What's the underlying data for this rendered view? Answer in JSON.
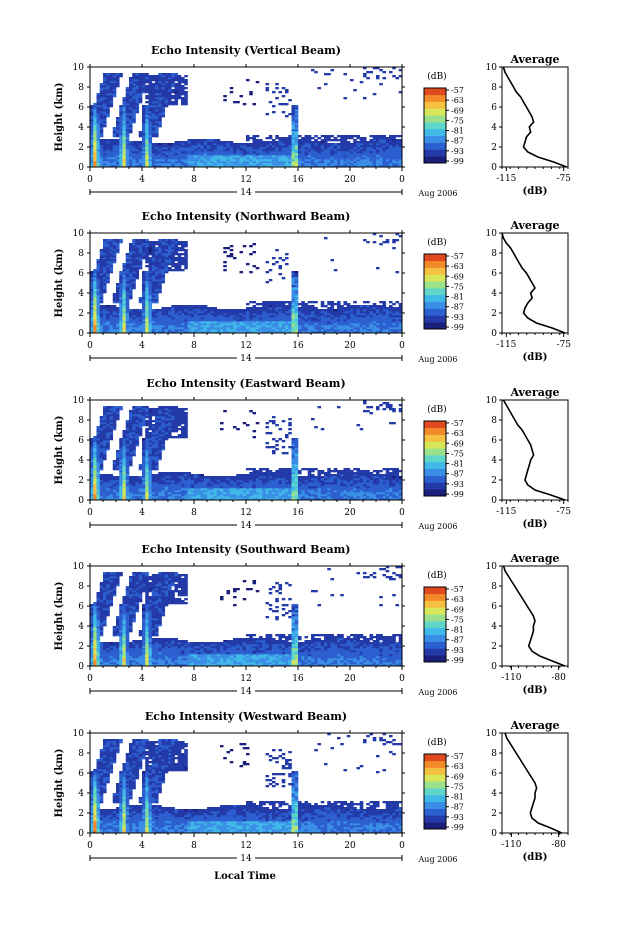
{
  "figure": {
    "xlabel": "Local Time",
    "date_label": "14",
    "month_label": "Aug 2006",
    "avg_title": "Average",
    "avg_xlabel": "(dB)",
    "cbar_label": "(dB)"
  },
  "colorscale": [
    "#1b1f7c",
    "#233aa8",
    "#2c5fd0",
    "#3a8ee6",
    "#40b8e8",
    "#5fd6c8",
    "#9be08a",
    "#d8e65a",
    "#f6c040",
    "#f38a2a",
    "#e04a1e"
  ],
  "chart_data": [
    {
      "type": "heatmap",
      "title": "Echo Intensity (Vertical Beam)",
      "xlabel": "Local Time",
      "ylabel": "Height (km)",
      "xlim": [
        0,
        24
      ],
      "xticks": [
        "0",
        "4",
        "8",
        "12",
        "16",
        "20",
        "0"
      ],
      "ylim": [
        0,
        10
      ],
      "yticks": [
        "0",
        "2",
        "4",
        "6",
        "8",
        "10"
      ],
      "colorbar": {
        "label": "(dB)",
        "ticks": [
          "-57",
          "-63",
          "-69",
          "-75",
          "-81",
          "-87",
          "-93",
          "-99"
        ]
      },
      "average": {
        "title": "Average",
        "xlabel": "(dB)",
        "xticks": [
          "-115",
          "-75"
        ],
        "xlim": [
          -118,
          -72
        ],
        "heights": [
          0,
          0.5,
          1,
          1.5,
          2,
          2.5,
          3,
          3.5,
          4,
          4.5,
          5,
          5.5,
          6,
          6.5,
          7,
          7.5,
          8,
          8.5,
          9,
          9.5,
          10
        ],
        "values": [
          -73,
          -82,
          -93,
          -100,
          -103,
          -102,
          -101,
          -98,
          -99,
          -96,
          -97,
          -99,
          -101,
          -103,
          -105,
          -108,
          -110,
          -112,
          -114,
          -116,
          -117
        ]
      }
    },
    {
      "type": "heatmap",
      "title": "Echo Intensity (Northward Beam)",
      "xlabel": "Local Time",
      "ylabel": "Height (km)",
      "xlim": [
        0,
        24
      ],
      "xticks": [
        "0",
        "4",
        "8",
        "12",
        "16",
        "20",
        "0"
      ],
      "ylim": [
        0,
        10
      ],
      "yticks": [
        "0",
        "2",
        "4",
        "6",
        "8",
        "10"
      ],
      "colorbar": {
        "label": "(dB)",
        "ticks": [
          "-57",
          "-63",
          "-69",
          "-75",
          "-81",
          "-87",
          "-93",
          "-99"
        ]
      },
      "average": {
        "title": "Average",
        "xlabel": "(dB)",
        "xticks": [
          "-115",
          "-75"
        ],
        "xlim": [
          -118,
          -72
        ],
        "heights": [
          0,
          0.5,
          1,
          1.5,
          2,
          2.5,
          3,
          3.5,
          4,
          4.5,
          5,
          5.5,
          6,
          6.5,
          7,
          7.5,
          8,
          8.5,
          9,
          9.5,
          10
        ],
        "values": [
          -74,
          -83,
          -94,
          -100,
          -103,
          -102,
          -100,
          -97,
          -98,
          -95,
          -97,
          -99,
          -101,
          -104,
          -106,
          -108,
          -110,
          -112,
          -115,
          -117,
          -118
        ]
      }
    },
    {
      "type": "heatmap",
      "title": "Echo Intensity (Eastward Beam)",
      "xlabel": "Local Time",
      "ylabel": "Height (km)",
      "xlim": [
        0,
        24
      ],
      "xticks": [
        "0",
        "4",
        "8",
        "12",
        "16",
        "20",
        "0"
      ],
      "ylim": [
        0,
        10
      ],
      "yticks": [
        "0",
        "2",
        "4",
        "6",
        "8",
        "10"
      ],
      "colorbar": {
        "label": "(dB)",
        "ticks": [
          "-57",
          "-63",
          "-69",
          "-75",
          "-81",
          "-87",
          "-93",
          "-99"
        ]
      },
      "average": {
        "title": "Average",
        "xlabel": "(dB)",
        "xticks": [
          "-115",
          "-75"
        ],
        "xlim": [
          -118,
          -72
        ],
        "heights": [
          0,
          0.5,
          1,
          1.5,
          2,
          2.5,
          3,
          3.5,
          4,
          4.5,
          5,
          5.5,
          6,
          6.5,
          7,
          7.5,
          8,
          8.5,
          9,
          9.5,
          10
        ],
        "values": [
          -74,
          -84,
          -95,
          -100,
          -102,
          -101,
          -100,
          -99,
          -98,
          -96,
          -97,
          -98,
          -100,
          -102,
          -104,
          -107,
          -109,
          -111,
          -113,
          -115,
          -117
        ]
      }
    },
    {
      "type": "heatmap",
      "title": "Echo Intensity (Southward Beam)",
      "xlabel": "Local Time",
      "ylabel": "Height (km)",
      "xlim": [
        0,
        24
      ],
      "xticks": [
        "0",
        "4",
        "8",
        "12",
        "16",
        "20",
        "0"
      ],
      "ylim": [
        0,
        10
      ],
      "yticks": [
        "0",
        "2",
        "4",
        "6",
        "8",
        "10"
      ],
      "colorbar": {
        "label": "(dB)",
        "ticks": [
          "-57",
          "-63",
          "-69",
          "-75",
          "-81",
          "-87",
          "-93",
          "-99"
        ]
      },
      "average": {
        "title": "Average",
        "xlabel": "(dB)",
        "xticks": [
          "-110",
          "-80"
        ],
        "xlim": [
          -116,
          -74
        ],
        "heights": [
          0,
          0.5,
          1,
          1.5,
          2,
          2.5,
          3,
          3.5,
          4,
          4.5,
          5,
          5.5,
          6,
          6.5,
          7,
          7.5,
          8,
          8.5,
          9,
          9.5,
          10
        ],
        "values": [
          -76,
          -84,
          -92,
          -97,
          -99,
          -98,
          -97,
          -96,
          -96,
          -95,
          -96,
          -98,
          -100,
          -102,
          -104,
          -106,
          -108,
          -110,
          -112,
          -114,
          -115
        ]
      }
    },
    {
      "type": "heatmap",
      "title": "Echo Intensity (Westward Beam)",
      "xlabel": "Local Time",
      "ylabel": "Height (km)",
      "xlim": [
        0,
        24
      ],
      "xticks": [
        "0",
        "4",
        "8",
        "12",
        "16",
        "20",
        "0"
      ],
      "ylim": [
        0,
        10
      ],
      "yticks": [
        "0",
        "2",
        "4",
        "6",
        "8",
        "10"
      ],
      "colorbar": {
        "label": "(dB)",
        "ticks": [
          "-57",
          "-63",
          "-69",
          "-75",
          "-81",
          "-87",
          "-93",
          "-99"
        ]
      },
      "average": {
        "title": "Average",
        "xlabel": "(dB)",
        "xticks": [
          "-110",
          "-80"
        ],
        "xlim": [
          -116,
          -74
        ],
        "heights": [
          0,
          0.5,
          1,
          1.5,
          2,
          2.5,
          3,
          3.5,
          4,
          4.5,
          5,
          5.5,
          6,
          6.5,
          7,
          7.5,
          8,
          8.5,
          9,
          9.5,
          10
        ],
        "values": [
          -78,
          -85,
          -93,
          -97,
          -98,
          -97,
          -96,
          -95,
          -95,
          -94,
          -95,
          -97,
          -99,
          -101,
          -103,
          -105,
          -107,
          -109,
          -111,
          -113,
          -114
        ]
      }
    }
  ]
}
